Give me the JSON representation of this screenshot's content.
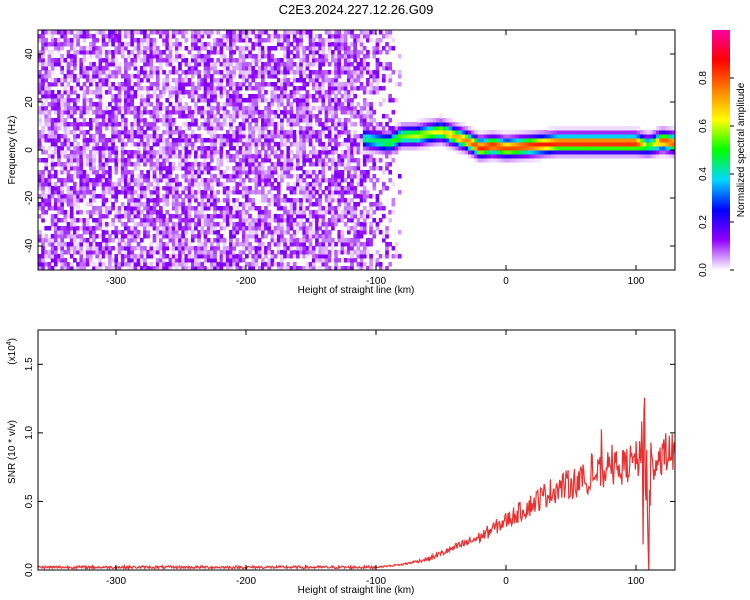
{
  "figure": {
    "title": "C2E3.2024.227.12.26.G09"
  },
  "chart_data": [
    {
      "type": "heatmap",
      "title": "C2E3.2024.227.12.26.G09",
      "xlabel": "Height of straight line (km)",
      "ylabel": "Frequency (Hz)",
      "xlim": [
        -360,
        130
      ],
      "ylim": [
        -50,
        50
      ],
      "xticks": [
        -300,
        -200,
        -100,
        0,
        100
      ],
      "yticks": [
        -40,
        -20,
        0,
        20,
        40
      ],
      "colorbar": {
        "label": "Normalized spectral amplitude",
        "range": [
          0,
          1
        ],
        "ticks": [
          "0.0",
          "0.2",
          "0.4",
          "0.6",
          "0.8"
        ],
        "colors": [
          "#ffffff",
          "#9000ff",
          "#0000ff",
          "#00d8ff",
          "#00ff00",
          "#ffff00",
          "#ff8000",
          "#ff0000",
          "#ff00a0"
        ]
      },
      "noise_region": {
        "x_range": [
          -360,
          -80
        ],
        "max_amplitude": 0.15
      },
      "signal_band": {
        "x": [
          -110,
          -100,
          -90,
          -80,
          -70,
          -60,
          -50,
          -40,
          -30,
          -20,
          -10,
          0,
          20,
          40,
          60,
          80,
          100,
          110,
          120,
          130
        ],
        "frequency": [
          5,
          4,
          3,
          6,
          6,
          7,
          8,
          6,
          4,
          1,
          2,
          1,
          2,
          3,
          3,
          3,
          3,
          2,
          4,
          3
        ],
        "amplitude": [
          0.45,
          0.45,
          0.5,
          0.55,
          0.6,
          0.6,
          0.65,
          0.7,
          0.75,
          0.85,
          0.85,
          0.8,
          0.85,
          0.85,
          0.85,
          0.85,
          0.85,
          0.5,
          0.8,
          0.8
        ]
      }
    },
    {
      "type": "line",
      "ylabel": "SNR (10 * v/v)",
      "xlabel": "Height of straight line (km)",
      "y_multiplier": "(x10",
      "y_multiplier_exp": "4",
      "xlim": [
        -360,
        130
      ],
      "ylim": [
        0,
        1.75
      ],
      "xticks": [
        -300,
        -200,
        -100,
        0,
        100
      ],
      "yticks": [
        "0.0",
        "0.5",
        "1.0",
        "1.5"
      ],
      "series": [
        {
          "color": "#e83030",
          "x": [
            -360,
            -300,
            -250,
            -200,
            -150,
            -100,
            -90,
            -80,
            -70,
            -60,
            -50,
            -40,
            -30,
            -20,
            -10,
            0,
            10,
            20,
            30,
            40,
            50,
            60,
            70,
            80,
            90,
            95,
            100,
            105,
            108,
            110,
            112,
            115,
            120,
            125,
            130
          ],
          "y": [
            0.02,
            0.02,
            0.02,
            0.02,
            0.02,
            0.02,
            0.03,
            0.04,
            0.06,
            0.08,
            0.12,
            0.16,
            0.2,
            0.24,
            0.3,
            0.36,
            0.42,
            0.48,
            0.55,
            0.6,
            0.63,
            0.66,
            0.7,
            0.72,
            0.75,
            0.78,
            0.8,
            0.82,
            0.6,
            0.1,
            0.75,
            0.8,
            0.84,
            0.86,
            0.87
          ]
        }
      ]
    }
  ]
}
